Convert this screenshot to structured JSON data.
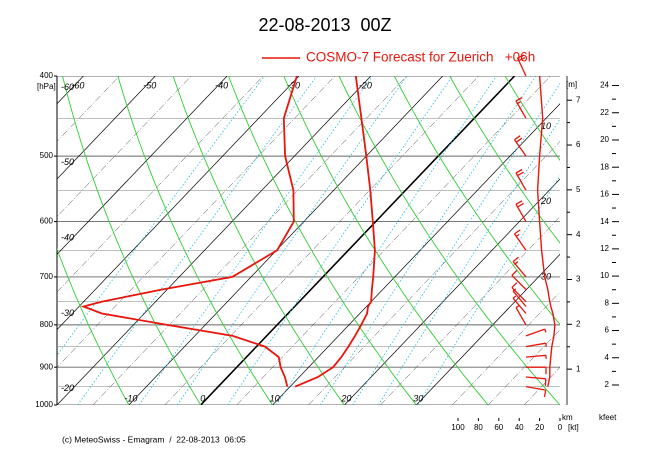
{
  "chart_data": {
    "type": "emagram",
    "title": "22-08-2013  00Z",
    "legend": "COSMO-7 Forecast for Zuerich   +06h",
    "footer": "(c) MeteoSwiss - Emagram  /  22-08-2013  06:05",
    "ylabel": "[hPa]",
    "log_y": true,
    "ylim": [
      1000,
      400
    ],
    "yticks": [
      400,
      500,
      600,
      700,
      800,
      900,
      1000
    ],
    "xlim": [
      -20,
      50
    ],
    "isotherm_labels": {
      "top": [
        -60,
        -50,
        -40,
        -30,
        -20
      ],
      "left": [
        -60,
        -50,
        -40,
        -30,
        -20
      ],
      "bottom": [
        -10,
        0,
        10,
        20,
        30
      ],
      "right": [
        10,
        20,
        30
      ]
    },
    "levels": [
      950,
      925,
      900,
      875,
      850,
      825,
      800,
      775,
      760,
      750,
      725,
      700,
      650,
      600,
      550,
      500,
      450,
      400
    ],
    "series": [
      {
        "color": "#e8160c",
        "values": [
          10.7,
          12.6,
          13.4,
          13.2,
          12.8,
          12.3,
          11.7,
          11.0,
          10.2,
          10.0,
          8.5,
          7.0,
          3.7,
          -0.4,
          -4.9,
          -10.0,
          -15.7,
          -22.1
        ]
      },
      {
        "color": "#e8160c",
        "values": [
          9.6,
          8.0,
          6.1,
          4.5,
          1.2,
          -4.7,
          -15.3,
          -25.9,
          -29.4,
          -27.5,
          -20.7,
          -12.6,
          -9.9,
          -11.4,
          -15.6,
          -21.3,
          -26.5,
          -30.3
        ]
      }
    ],
    "wind": {
      "color": "#e8160c",
      "speed": [
        12,
        10,
        10,
        9,
        8,
        6,
        5,
        7,
        9,
        10,
        12,
        15,
        18,
        20,
        22,
        20,
        17,
        20
      ],
      "direction": [
        100,
        95,
        90,
        85,
        80,
        70,
        330,
        320,
        320,
        315,
        315,
        320,
        325,
        330,
        330,
        325,
        330,
        335
      ],
      "xlim": [
        100,
        0
      ],
      "xticks": [
        100,
        80,
        60,
        40,
        20,
        0
      ],
      "xlabel": "[kt]"
    },
    "height_axis": {
      "label": "[m]",
      "unit_label": "km",
      "ylim": [
        0.2,
        7.54
      ],
      "yticks": [
        1,
        2,
        3,
        4,
        5,
        6,
        7
      ]
    },
    "kfeet_axis": {
      "label": "kfeet",
      "ylim": [
        0.53,
        24.7
      ],
      "yticks": [
        2,
        4,
        6,
        8,
        10,
        12,
        14,
        16,
        18,
        20,
        22,
        24
      ]
    }
  }
}
